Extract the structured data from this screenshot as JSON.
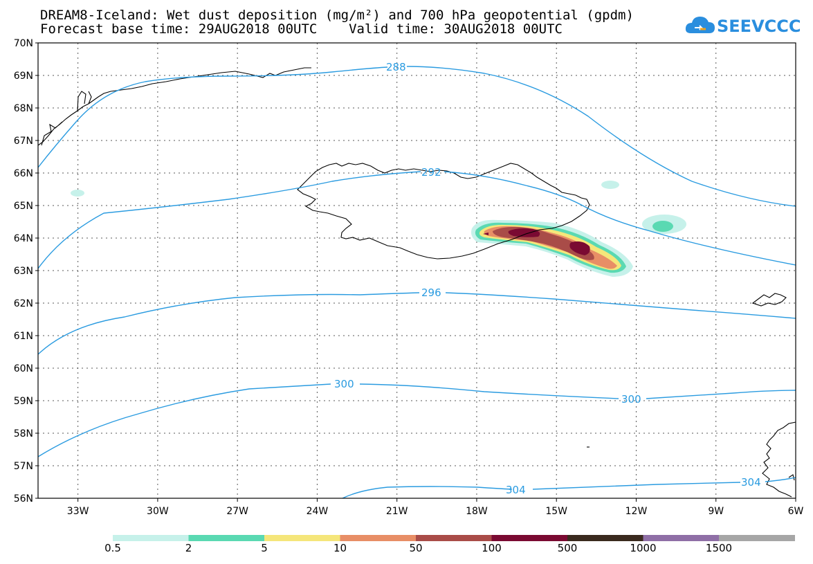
{
  "header": {
    "title_line1": "DREAM8-Iceland: Wet dust deposition (mg/m²) and 700 hPa geopotential (gpdm)",
    "title_line2": "Forecast base time: 29AUG2018 00UTC    Valid time: 30AUG2018 00UTC"
  },
  "logo": {
    "text": "SEEVCCC",
    "icon": "cloud-icon",
    "color": "#2a8ede"
  },
  "map": {
    "lon_range": [
      -34.5,
      -6
    ],
    "lat_range": [
      56,
      70
    ],
    "lat_labels": [
      "70N",
      "69N",
      "68N",
      "67N",
      "66N",
      "65N",
      "64N",
      "63N",
      "62N",
      "61N",
      "60N",
      "59N",
      "58N",
      "57N",
      "56N"
    ],
    "lon_labels": [
      "33W",
      "30W",
      "27W",
      "24W",
      "21W",
      "18W",
      "15W",
      "12W",
      "9W",
      "6W"
    ],
    "contour_color": "#2a9be0",
    "contours": [
      {
        "label": "288"
      },
      {
        "label": "292"
      },
      {
        "label": "296"
      },
      {
        "label": "300"
      },
      {
        "label": "300"
      },
      {
        "label": "304"
      },
      {
        "label": "304"
      }
    ]
  },
  "legend": {
    "labels": [
      "0.5",
      "2",
      "5",
      "10",
      "50",
      "100",
      "500",
      "1000",
      "1500"
    ],
    "colors": [
      "#c6f1ea",
      "#5ad9b2",
      "#f5e67a",
      "#e88e66",
      "#a94c48",
      "#7a0a32",
      "#3a2a1e",
      "#8f6fa6",
      "#a6a6a6"
    ]
  }
}
